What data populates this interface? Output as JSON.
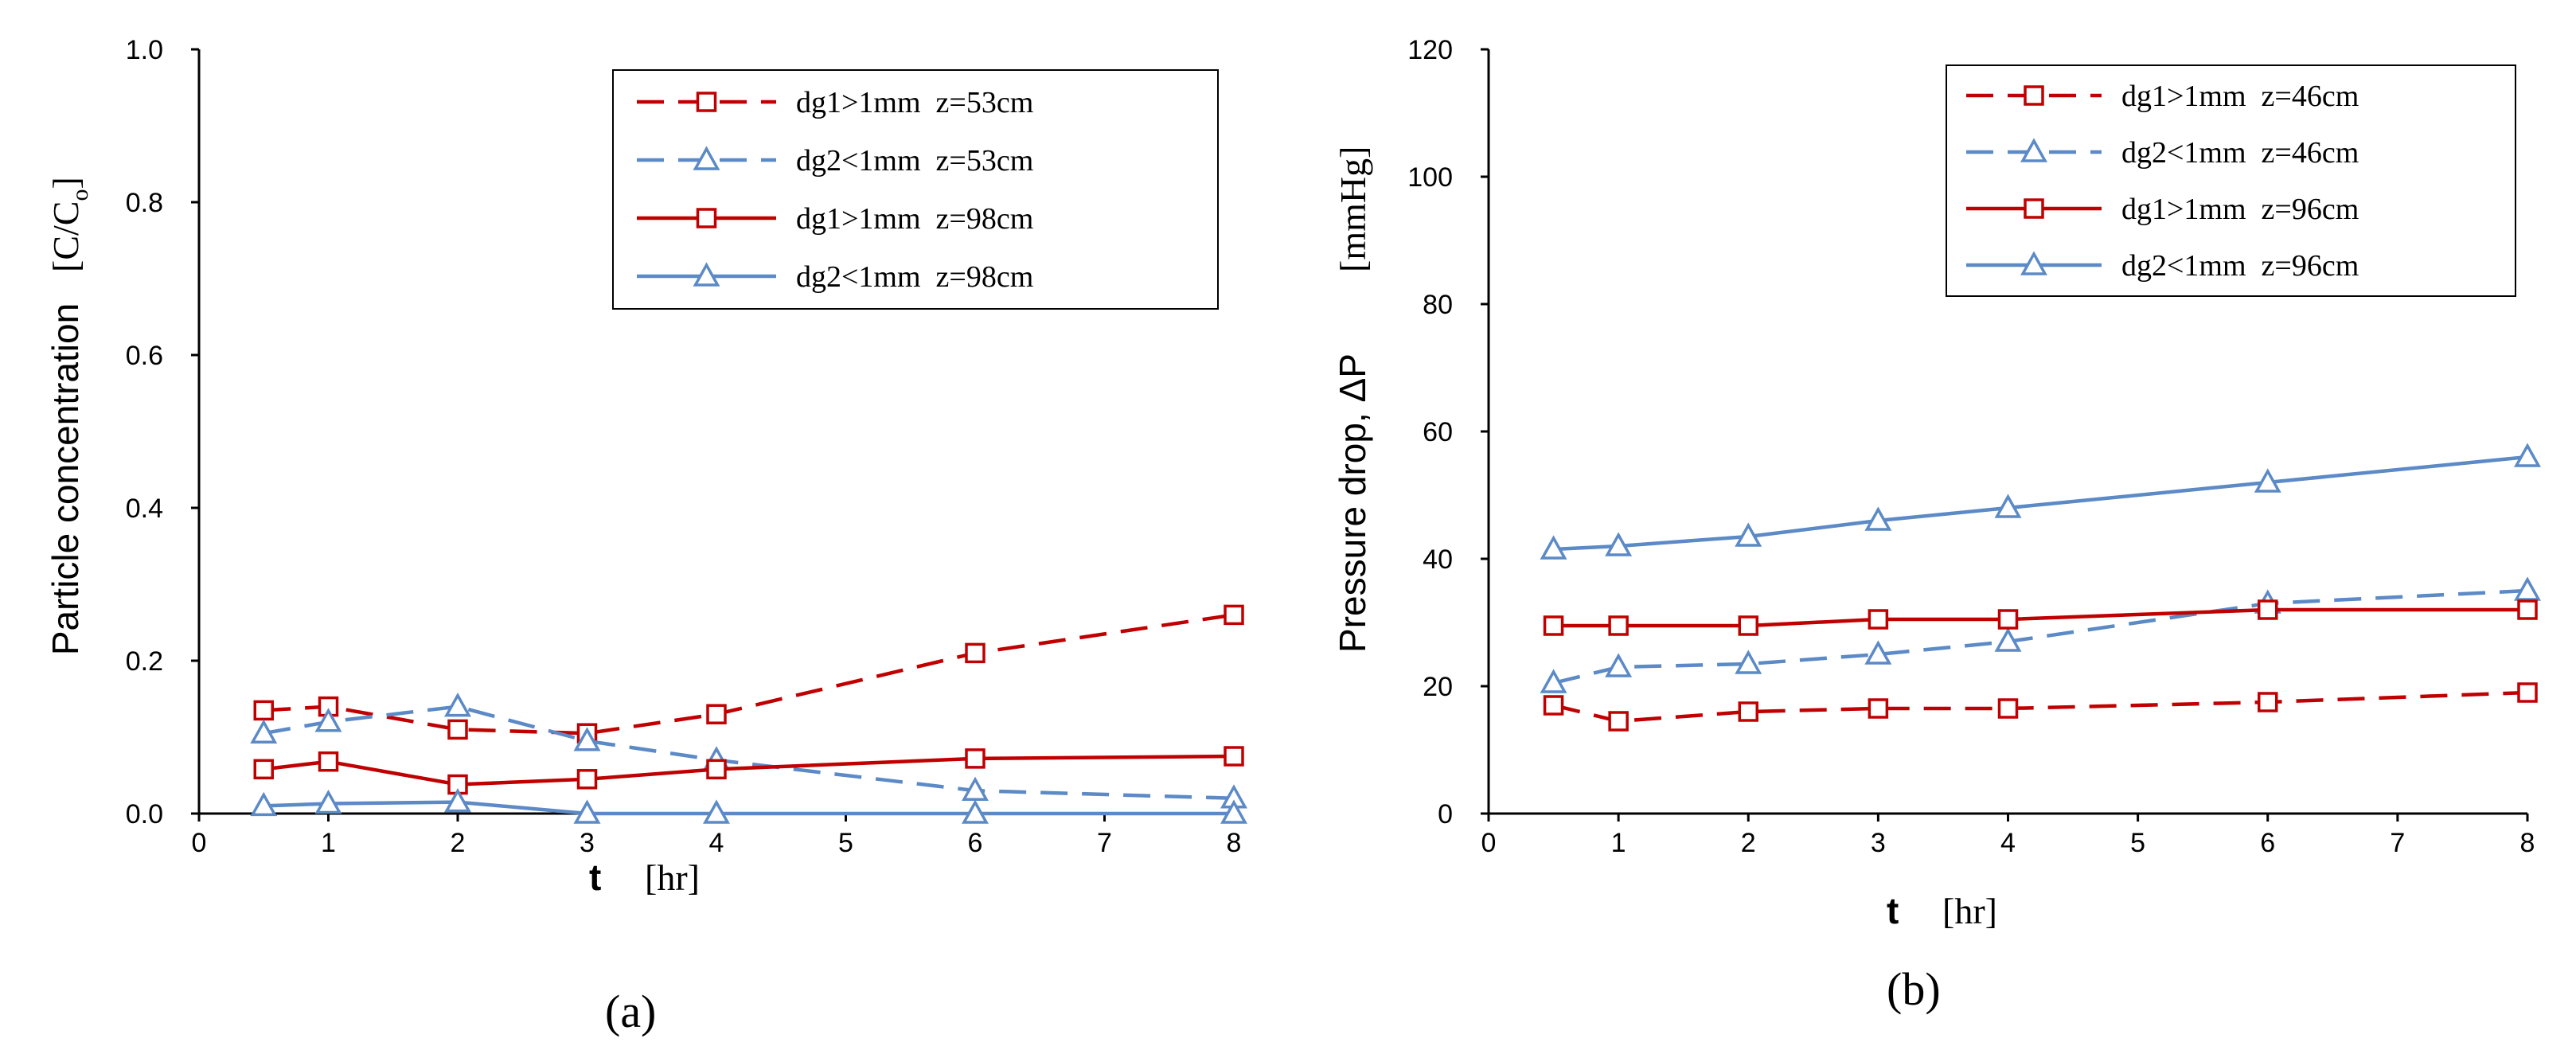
{
  "colors": {
    "red": "#c00000",
    "blue": "#5b8ac6",
    "axis": "#000000",
    "legend_border": "#000000"
  },
  "chart_data": [
    {
      "type": "line",
      "panel_label": "(a)",
      "ylabel": "Particle concentration",
      "ylabel_unit": "[C/C",
      "ylabel_unit_sub": "o",
      "ylabel_unit_end": "]",
      "xlabel_bold": "t",
      "xlabel_unit": "[hr]",
      "xlim": [
        0,
        8
      ],
      "ylim": [
        0,
        1.0
      ],
      "x_ticks": [
        "0",
        "1",
        "2",
        "3",
        "4",
        "5",
        "6",
        "7",
        "8"
      ],
      "y_ticks": [
        "0.0",
        "0.2",
        "0.4",
        "0.6",
        "0.8",
        "1.0"
      ],
      "x": [
        0.5,
        1,
        2,
        3,
        4,
        6,
        8
      ],
      "series": [
        {
          "name": "dg1>1mm  z=53cm",
          "color": "red",
          "dashed": true,
          "marker": "square",
          "values": [
            0.135,
            0.14,
            0.11,
            0.105,
            0.13,
            0.21,
            0.26
          ]
        },
        {
          "name": "dg2<1mm  z=53cm",
          "color": "blue",
          "dashed": true,
          "marker": "triangle",
          "values": [
            0.105,
            0.12,
            0.14,
            0.095,
            0.07,
            0.03,
            0.02
          ]
        },
        {
          "name": "dg1>1mm  z=98cm",
          "color": "red",
          "dashed": false,
          "marker": "square",
          "values": [
            0.058,
            0.068,
            0.038,
            0.045,
            0.058,
            0.072,
            0.075
          ]
        },
        {
          "name": "dg2<1mm  z=98cm",
          "color": "blue",
          "dashed": false,
          "marker": "triangle",
          "values": [
            0.01,
            0.013,
            0.015,
            0.0,
            0.0,
            0.0,
            0.0
          ]
        }
      ]
    },
    {
      "type": "line",
      "panel_label": "(b)",
      "ylabel": "Pressure drop, ΔP",
      "ylabel_unit": "[mmHg]",
      "xlabel_bold": "t",
      "xlabel_unit": "[hr]",
      "xlim": [
        0,
        8
      ],
      "ylim": [
        0,
        120
      ],
      "x_ticks": [
        "0",
        "1",
        "2",
        "3",
        "4",
        "5",
        "6",
        "7",
        "8"
      ],
      "y_ticks": [
        "0",
        "20",
        "40",
        "60",
        "80",
        "100",
        "120"
      ],
      "x": [
        0.5,
        1,
        2,
        3,
        4,
        6,
        8
      ],
      "series": [
        {
          "name": "dg1>1mm  z=46cm",
          "color": "red",
          "dashed": true,
          "marker": "square",
          "values": [
            17,
            14.5,
            16,
            16.5,
            16.5,
            17.5,
            19
          ]
        },
        {
          "name": "dg2<1mm  z=46cm",
          "color": "blue",
          "dashed": true,
          "marker": "triangle",
          "values": [
            20.5,
            23,
            23.5,
            25,
            27,
            33,
            35
          ]
        },
        {
          "name": "dg1>1mm  z=96cm",
          "color": "red",
          "dashed": false,
          "marker": "square",
          "values": [
            29.5,
            29.5,
            29.5,
            30.5,
            30.5,
            32,
            32
          ]
        },
        {
          "name": "dg2<1mm  z=96cm",
          "color": "blue",
          "dashed": false,
          "marker": "triangle",
          "values": [
            41.5,
            42,
            43.5,
            46,
            48,
            52,
            56
          ]
        }
      ]
    }
  ]
}
